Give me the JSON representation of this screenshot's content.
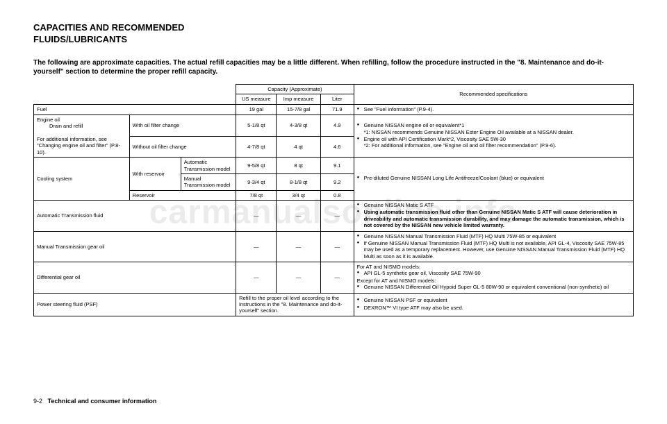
{
  "title_line1": "CAPACITIES AND RECOMMENDED",
  "title_line2": "FLUIDS/LUBRICANTS",
  "intro": "The following are approximate capacities. The actual refill capacities may be a little different. When refilling, follow the procedure instructed in the \"8. Maintenance and do-it-yourself\" section to determine the proper refill capacity.",
  "headers": {
    "capacity": "Capacity (Approximate)",
    "us": "US measure",
    "imp": "Imp measure",
    "liter": "Liter",
    "rec": "Recommended specifications"
  },
  "rows": {
    "fuel": {
      "label": "Fuel",
      "us": "19 gal",
      "imp": "15-7/8 gal",
      "liter": "71.9"
    },
    "fuel_rec": "See \"Fuel information\" (P.9-4).",
    "engine_oil_label": "Engine oil",
    "engine_oil_sub": "Drain and refill",
    "engine_oil_note": "For additional information, see \"Changing engine oil and filter\" (P.8-10).",
    "with_filter": {
      "label": "With oil filter change",
      "us": "5-1/8 qt",
      "imp": "4-3/8 qt",
      "liter": "4.9"
    },
    "without_filter": {
      "label": "Without oil filter change",
      "us": "4-7/8 qt",
      "imp": "4 qt",
      "liter": "4.6"
    },
    "engine_rec_1": "Genuine NISSAN engine oil or equivalent*1",
    "engine_rec_1a": "*1: NISSAN recommends Genuine NISSAN Ester Engine Oil available at a NISSAN dealer.",
    "engine_rec_2": "Engine oil with API Certification Mark*2, Viscosity SAE 5W-30",
    "engine_rec_2a": "*2: For additional information, see \"Engine oil and oil filter recommendation\" (P.9-6).",
    "cooling_label": "Cooling system",
    "with_reservoir": "With reservoir",
    "auto_trans_model": {
      "label": "Automatic Transmission model",
      "us": "9-5/8 qt",
      "imp": "8 qt",
      "liter": "9.1"
    },
    "manual_trans_model": {
      "label": "Manual Transmission model",
      "us": "9-3/4 qt",
      "imp": "8-1/8 qt",
      "liter": "9.2"
    },
    "reservoir": {
      "label": "Reservoir",
      "us": "7/8 qt",
      "imp": "3/4 qt",
      "liter": "0.8"
    },
    "cooling_rec": "Pre-diluted Genuine NISSAN Long Life Antifreeze/Coolant (blue) or equivalent",
    "atf_label": "Automatic Transmission fluid",
    "atf_rec_1": "Genuine NISSAN Matic S ATF",
    "atf_rec_2": "Using automatic transmission fluid other than Genuine NISSAN Matic S ATF will cause deterioration in driveability and automatic transmission durability, and may damage the automatic transmission, which is not covered by the NISSAN new vehicle limited warranty.",
    "mtf_label": "Manual Transmission gear oil",
    "mtf_rec_1": "Genuine NISSAN Manual Transmission Fluid (MTF) HQ Multi 75W-85 or equivalent",
    "mtf_rec_2": "If Genuine NISSAN Manual Transmission Fluid (MTF) HQ Multi is not available, API GL-4, Viscosity SAE 75W-85 may be used as a temporary replacement. However, use Genuine NISSAN Manual Transmission Fluid (MTF) HQ Multi as soon as it is available.",
    "diff_label": "Differential gear oil",
    "diff_rec_h1": "For AT and NISMO models:",
    "diff_rec_1": "API GL-5 synthetic gear oil, Viscosity SAE 75W-90",
    "diff_rec_h2": "Except for AT and NISMO models:",
    "diff_rec_2": "Genuine NISSAN Differential Oil Hypoid Super GL-5 80W-90 or equivalent conventional (non-synthetic) oil",
    "psf_label": "Power steering fluid (PSF)",
    "psf_cap": "Refill to the proper oil level according to the instructions in the \"8. Maintenance and do-it-yourself\" section.",
    "psf_rec_1": "Genuine NISSAN PSF or equivalent",
    "psf_rec_2": "DEXRON™ VI type ATF may also be used."
  },
  "dash": "—",
  "footer_page": "9-2",
  "footer_section": "Technical and consumer information",
  "watermark": "carmanualsonline.info"
}
